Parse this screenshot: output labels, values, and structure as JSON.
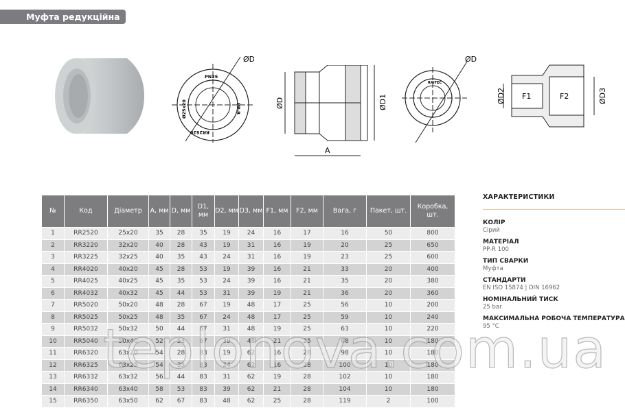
{
  "title": "Муфта редукційна",
  "drawings": {
    "front_left": {
      "label_d1": "ØD1",
      "mark_top": "PN25",
      "mark_right": "PP-R",
      "mark_left": "Ø25x20",
      "mark_bottom": "RR2520"
    },
    "side": {
      "label_d": "ØD",
      "label_d1": "ØD1",
      "label_a": "A"
    },
    "front_right": {
      "label_d": "ØD",
      "mark_top": "RAITEC"
    },
    "section": {
      "label_d2": "ØD2",
      "label_d3": "ØD3",
      "label_f1": "F1",
      "label_f2": "F2"
    }
  },
  "table": {
    "headers": [
      "№",
      "Код",
      "Діаметр",
      "A, мм",
      "D, мм",
      "D1, мм",
      "D2, мм",
      "D3, мм",
      "F1, мм",
      "F2, мм",
      "Вага, г",
      "Пакет, шт.",
      "Коробка, шт."
    ],
    "rows": [
      [
        "1",
        "RR2520",
        "25x20",
        "35",
        "28",
        "35",
        "19",
        "24",
        "16",
        "17",
        "16",
        "50",
        "800"
      ],
      [
        "2",
        "RR3220",
        "32x20",
        "40",
        "28",
        "43",
        "19",
        "31",
        "16",
        "19",
        "20",
        "25",
        "650"
      ],
      [
        "3",
        "RR3225",
        "32x25",
        "40",
        "35",
        "43",
        "24",
        "31",
        "16",
        "19",
        "23",
        "25",
        "600"
      ],
      [
        "4",
        "RR4020",
        "40x20",
        "45",
        "28",
        "53",
        "19",
        "39",
        "16",
        "21",
        "33",
        "20",
        "400"
      ],
      [
        "5",
        "RR4025",
        "40x25",
        "45",
        "35",
        "53",
        "24",
        "39",
        "16",
        "21",
        "35",
        "20",
        "380"
      ],
      [
        "6",
        "RR4032",
        "40x32",
        "45",
        "44",
        "53",
        "31",
        "39",
        "19",
        "21",
        "36",
        "20",
        "360"
      ],
      [
        "7",
        "RR5020",
        "50x20",
        "48",
        "28",
        "67",
        "19",
        "48",
        "17",
        "25",
        "56",
        "10",
        "200"
      ],
      [
        "8",
        "RR5025",
        "50x25",
        "48",
        "35",
        "67",
        "24",
        "48",
        "17",
        "25",
        "59",
        "10",
        "240"
      ],
      [
        "9",
        "RR5032",
        "50x32",
        "50",
        "44",
        "67",
        "31",
        "48",
        "19",
        "25",
        "63",
        "10",
        "220"
      ],
      [
        "10",
        "RR5040",
        "50x40",
        "52",
        "53",
        "67",
        "39",
        "48",
        "21",
        "25",
        "68",
        "10",
        "180"
      ],
      [
        "11",
        "RR6320",
        "63x20",
        "54",
        "28",
        "83",
        "19",
        "62",
        "16",
        "28",
        "98",
        "10",
        "180"
      ],
      [
        "12",
        "RR6325",
        "63x25",
        "54",
        "35",
        "83",
        "24",
        "62",
        "16",
        "28",
        "100",
        "10",
        "180"
      ],
      [
        "13",
        "RR6332",
        "63x32",
        "56",
        "44",
        "83",
        "31",
        "62",
        "19",
        "28",
        "102",
        "10",
        "180"
      ],
      [
        "14",
        "RR6340",
        "63x40",
        "58",
        "53",
        "83",
        "39",
        "62",
        "21",
        "28",
        "104",
        "10",
        "180"
      ],
      [
        "15",
        "RR6350",
        "63x50",
        "62",
        "67",
        "83",
        "48",
        "62",
        "25",
        "28",
        "119",
        "2",
        "100"
      ]
    ]
  },
  "characteristics": {
    "title": "ХАРАКТЕРИСТИКИ",
    "items": [
      {
        "label": "КОЛІР",
        "value": "Сірий"
      },
      {
        "label": "МАТЕРІАЛ",
        "value": "PP-R 100"
      },
      {
        "label": "ТИП СВАРКИ",
        "value": "Муфта"
      },
      {
        "label": "СТАНДАРТИ",
        "value": "EN ISO 15874 | DIN 16962"
      },
      {
        "label": "НОМІНАЛЬНИЙ ТИСК",
        "value": "25 bar"
      },
      {
        "label": "МАКСИМАЛЬНА РОБОЧА ТЕМПЕРАТУРА",
        "value": "95 °C"
      }
    ]
  },
  "watermark": "teplonova.com.ua",
  "colors": {
    "header": "#7d7d80",
    "row_light": "#ececec",
    "row_dark": "#d3d3d3",
    "accent_line": "#e9c9a0"
  }
}
